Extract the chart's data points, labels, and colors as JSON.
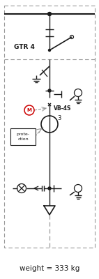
{
  "background_color": "#ffffff",
  "line_color": "#1a1a1a",
  "dash_color": "#999999",
  "motor_color": "#cc0000",
  "weight_text": "weight = 333 kg",
  "label_GTR4": "GTR 4",
  "label_VB4S": "VB-4S",
  "label_3": "3"
}
